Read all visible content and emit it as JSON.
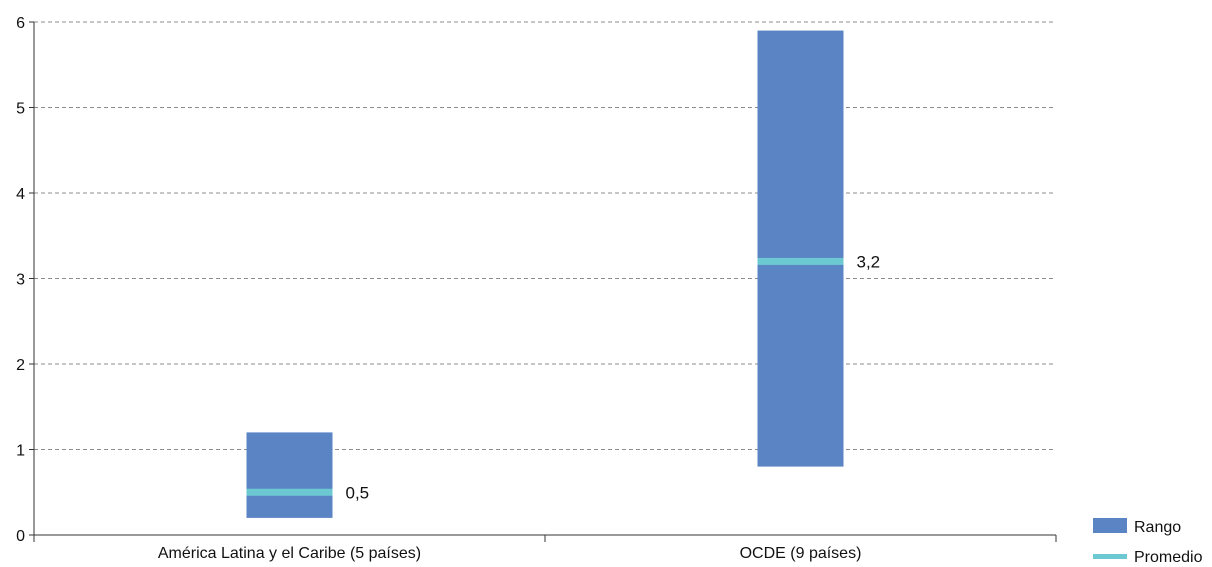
{
  "chart_data": {
    "type": "bar",
    "title": "",
    "xlabel": "",
    "ylabel": "",
    "ylim": [
      0,
      6
    ],
    "yticks": [
      0,
      1,
      2,
      3,
      4,
      5,
      6
    ],
    "grid": true,
    "legend_placement": "bottom-right",
    "categories": [
      "América Latina y el Caribe (5 países)",
      "OCDE (9 países)"
    ],
    "series": [
      {
        "name": "Rango",
        "type": "range",
        "color": "#5b84c4",
        "low": [
          0.2,
          0.8
        ],
        "high": [
          1.2,
          5.9
        ]
      },
      {
        "name": "Promedio",
        "type": "marker",
        "color": "#6cc9d1",
        "values": [
          0.5,
          3.2
        ],
        "labels": [
          "0,5",
          "3,2"
        ]
      }
    ]
  }
}
